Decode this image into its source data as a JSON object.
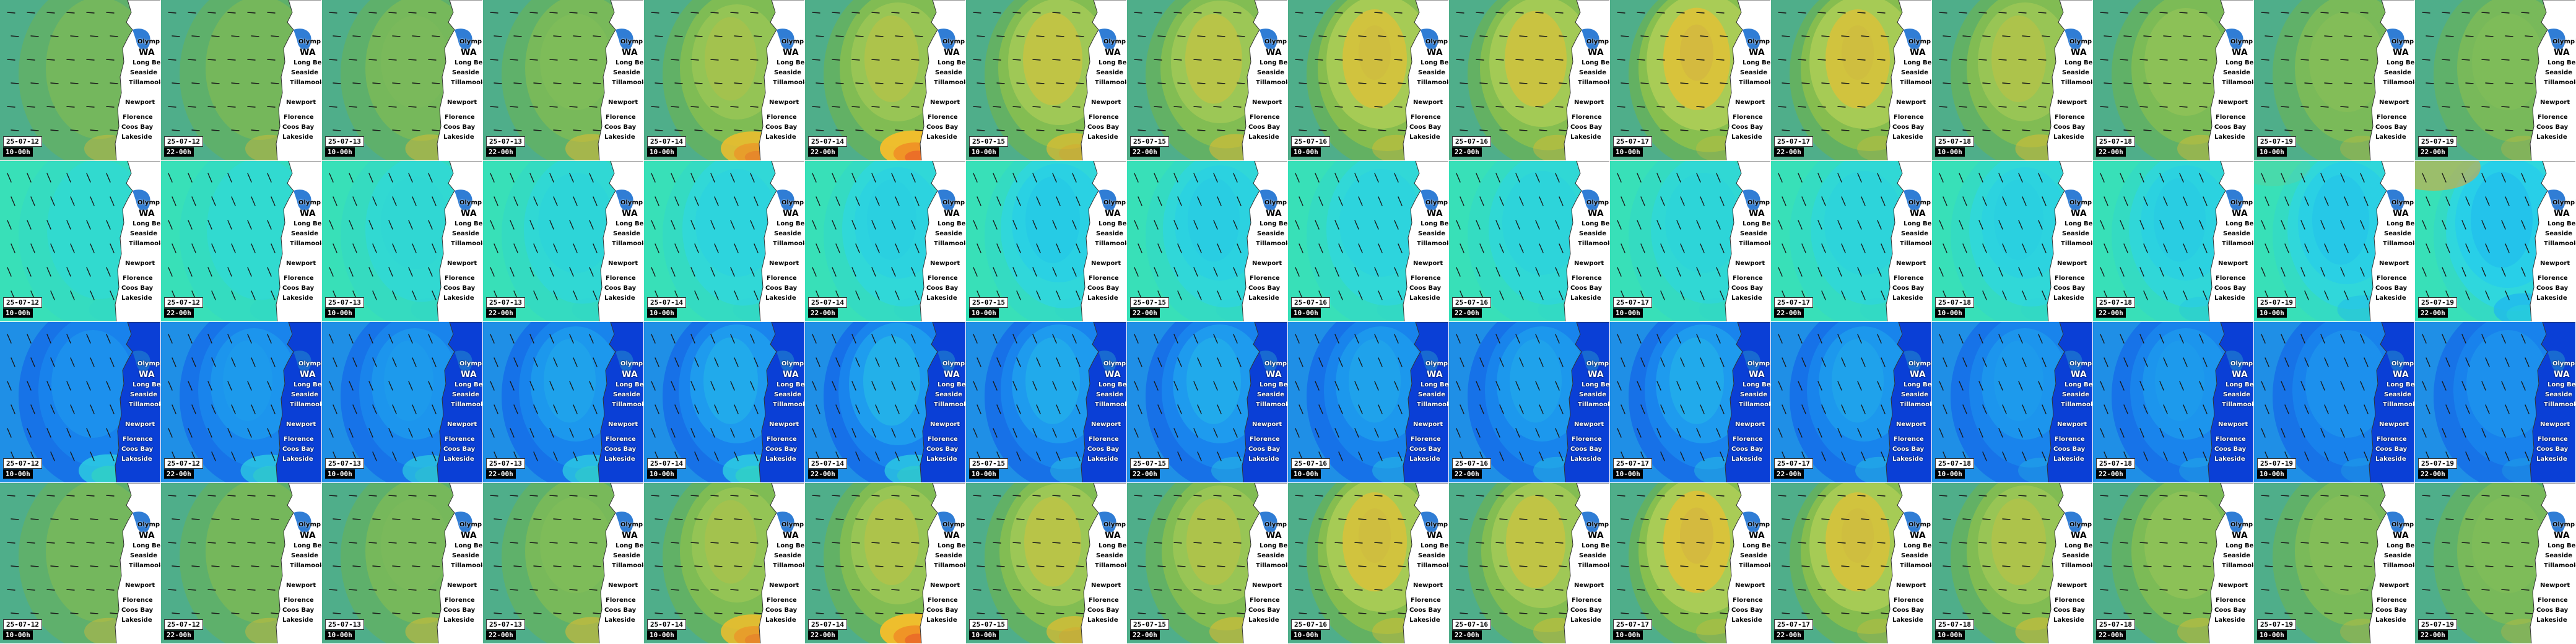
{
  "panels": {
    "columns": 16,
    "rows": [
      {
        "row_id": "wind-row",
        "colors": {
          "ocean": "#4fae8a",
          "land": "#ffffff",
          "levels": [
            "#4fae8a",
            "#69b258",
            "#92c24a",
            "#bcd35a",
            "#f2bd2c",
            "#f08a24",
            "#e5492a",
            "#c7a04a"
          ]
        },
        "intensity": [
          0.15,
          0.2,
          0.25,
          0.3,
          0.55,
          0.6,
          0.7,
          0.65,
          0.8,
          0.75,
          0.85,
          0.8,
          0.6,
          0.45,
          0.35,
          0.3
        ],
        "hotspot": [
          0.3,
          0.3,
          0.35,
          0.4,
          0.7,
          0.8,
          0.5,
          0.4,
          0.3,
          0.3,
          0.2,
          0.2,
          0.35,
          0.3,
          0.2,
          0.2
        ],
        "arrows": "wind",
        "labels_dark": false
      },
      {
        "row_id": "wave-height-row",
        "colors": {
          "ocean": "#38e0b8",
          "land": "#ffffff",
          "levels": [
            "#39e6a5",
            "#33d9c6",
            "#2ed6e6",
            "#23c8f0",
            "#1fb6ee",
            "#2ad9d8",
            "#f0a12a",
            "#ffcc10"
          ]
        },
        "intensity": [
          0.1,
          0.15,
          0.25,
          0.35,
          0.45,
          0.5,
          0.6,
          0.55,
          0.45,
          0.4,
          0.35,
          0.4,
          0.5,
          0.55,
          0.65,
          0.75
        ],
        "hotspot": [
          0.05,
          0.05,
          0.05,
          0.05,
          0.05,
          0.05,
          0.05,
          0.05,
          0.05,
          0.05,
          0.05,
          0.05,
          0.05,
          0.2,
          0.35,
          0.6
        ],
        "arrows": "wave",
        "labels_dark": false
      },
      {
        "row_id": "wave-period-row",
        "colors": {
          "ocean": "#1f8fe6",
          "land": "#0a3fd6",
          "levels": [
            "#0a3fd6",
            "#1466e8",
            "#1a8fef",
            "#26bdf0",
            "#30d9e0",
            "#3ae6a8",
            "#46e83a",
            "#b6f21e"
          ]
        },
        "intensity": [
          0.45,
          0.5,
          0.5,
          0.55,
          0.6,
          0.65,
          0.6,
          0.6,
          0.55,
          0.55,
          0.6,
          0.55,
          0.5,
          0.5,
          0.45,
          0.45
        ],
        "hotspot": [
          0.6,
          0.55,
          0.5,
          0.55,
          0.6,
          0.55,
          0.3,
          0.3,
          0.3,
          0.3,
          0.3,
          0.3,
          0.2,
          0.2,
          0.15,
          0.15
        ],
        "arrows": "wave",
        "labels_dark": true
      },
      {
        "row_id": "wind-row-2",
        "colors": {
          "ocean": "#4fae8a",
          "land": "#ffffff",
          "levels": [
            "#4fae8a",
            "#69b258",
            "#92c24a",
            "#bcd35a",
            "#f2bd2c",
            "#f08a24",
            "#e5492a",
            "#c7a04a"
          ]
        },
        "intensity": [
          0.15,
          0.2,
          0.25,
          0.3,
          0.55,
          0.6,
          0.65,
          0.6,
          0.8,
          0.7,
          0.85,
          0.8,
          0.6,
          0.45,
          0.35,
          0.3
        ],
        "hotspot": [
          0.3,
          0.3,
          0.35,
          0.4,
          0.7,
          0.8,
          0.5,
          0.4,
          0.3,
          0.3,
          0.2,
          0.2,
          0.35,
          0.3,
          0.2,
          0.2
        ],
        "arrows": "wind",
        "labels_dark": false
      }
    ],
    "dates": [
      "25-07-12",
      "25-07-12",
      "25-07-13",
      "25-07-13",
      "25-07-14",
      "25-07-14",
      "25-07-15",
      "25-07-15",
      "25-07-16",
      "25-07-16",
      "25-07-17",
      "25-07-17",
      "25-07-18",
      "25-07-18",
      "25-07-19",
      "25-07-19"
    ],
    "times": [
      "10-00h",
      "22-00h",
      "10-00h",
      "22-00h",
      "10-00h",
      "22-00h",
      "10-00h",
      "22-00h",
      "10-00h",
      "22-00h",
      "10-00h",
      "22-00h",
      "10-00h",
      "22-00h",
      "10-00h",
      "22-00h"
    ],
    "places": {
      "state": "WA",
      "cities": [
        "Olympia",
        "Long Beach",
        "Seaside",
        "Tillamook",
        "Newport",
        "Florence",
        "Coos Bay",
        "Lakeside"
      ]
    }
  }
}
